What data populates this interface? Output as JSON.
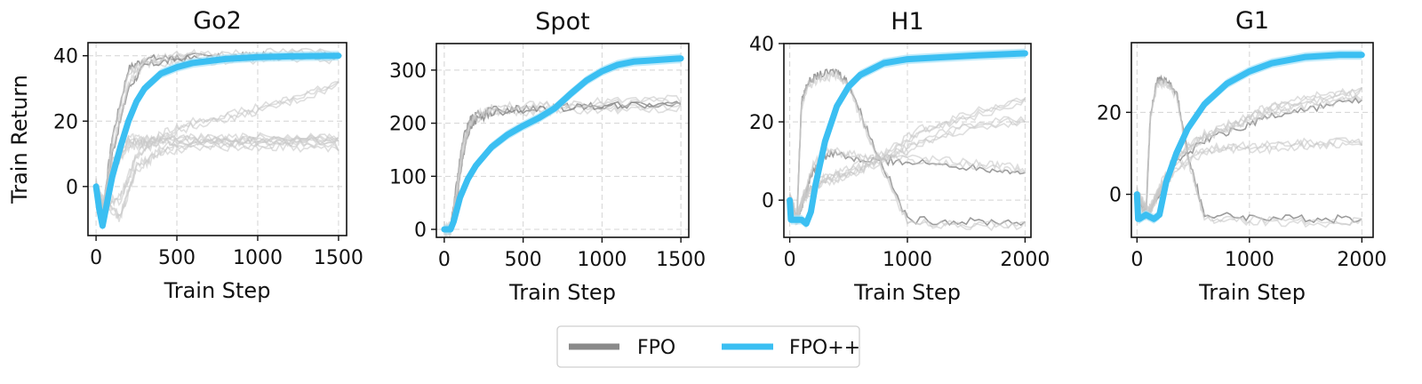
{
  "chart_data": [
    {
      "type": "line",
      "title": "Go2",
      "xlabel": "Train Step",
      "ylabel": "Train Return",
      "xlim": [
        -50,
        1550
      ],
      "ylim": [
        -15,
        44
      ],
      "xticks": [
        0,
        500,
        1000,
        1500
      ],
      "xtick_labels": [
        "0",
        "500",
        "1000",
        "1500"
      ],
      "yticks": [
        0,
        20,
        40
      ],
      "ytick_labels": [
        "0",
        "20",
        "40"
      ],
      "grid": true,
      "series": [
        {
          "name": "FPO++",
          "x": [
            0,
            20,
            40,
            60,
            80,
            100,
            150,
            200,
            250,
            300,
            400,
            500,
            600,
            800,
            1000,
            1200,
            1500
          ],
          "values": [
            0,
            -7,
            -12,
            -7,
            -2,
            3,
            12,
            20,
            26,
            30,
            34.5,
            36.5,
            37.8,
            39,
            39.6,
            39.8,
            40
          ]
        },
        {
          "name": "FPO",
          "runs_approx": [
            {
              "x": [
                0,
                40,
                100,
                200,
                300,
                500,
                800,
                1100,
                1500
              ],
              "values": [
                0,
                -8,
                15,
                36,
                39,
                39.5,
                39.8,
                40,
                40
              ]
            },
            {
              "x": [
                0,
                40,
                100,
                200,
                300,
                500,
                800,
                1100,
                1500
              ],
              "values": [
                0,
                -8,
                10,
                30,
                37,
                39,
                39.5,
                39.8,
                40
              ]
            },
            {
              "x": [
                0,
                40,
                100,
                200,
                300,
                500,
                800,
                1100,
                1500
              ],
              "values": [
                0,
                -8,
                8,
                15,
                15,
                15,
                15,
                15,
                15
              ]
            },
            {
              "x": [
                0,
                40,
                100,
                200,
                300,
                500,
                800,
                1100,
                1500
              ],
              "values": [
                0,
                -8,
                5,
                12,
                12.5,
                13,
                13.5,
                14,
                14
              ]
            },
            {
              "x": [
                0,
                40,
                150,
                250,
                400,
                600,
                900,
                1200,
                1500
              ],
              "values": [
                0,
                -5,
                -3,
                10,
                16,
                20,
                23,
                27,
                32
              ]
            },
            {
              "x": [
                0,
                40,
                150,
                250,
                400,
                600,
                900,
                1200,
                1500
              ],
              "values": [
                0,
                -5,
                -10,
                5,
                10,
                12,
                12,
                12,
                11
              ]
            }
          ]
        }
      ]
    },
    {
      "type": "line",
      "title": "Spot",
      "xlabel": "Train Step",
      "ylabel": "",
      "xlim": [
        -50,
        1550
      ],
      "ylim": [
        -15,
        350
      ],
      "xticks": [
        0,
        500,
        1000,
        1500
      ],
      "xtick_labels": [
        "0",
        "500",
        "1000",
        "1500"
      ],
      "yticks": [
        0,
        100,
        200,
        300
      ],
      "ytick_labels": [
        "0",
        "100",
        "200",
        "300"
      ],
      "grid": true,
      "series": [
        {
          "name": "FPO++",
          "x": [
            0,
            40,
            60,
            100,
            150,
            200,
            300,
            400,
            500,
            600,
            700,
            800,
            900,
            1000,
            1100,
            1200,
            1300,
            1400,
            1500
          ],
          "values": [
            0,
            0,
            15,
            60,
            95,
            120,
            155,
            178,
            195,
            210,
            228,
            255,
            280,
            298,
            310,
            316,
            318,
            320,
            322
          ]
        },
        {
          "name": "FPO",
          "runs_approx": [
            {
              "x": [
                0,
                40,
                80,
                120,
                160,
                200,
                300,
                500,
                800,
                1100,
                1500
              ],
              "values": [
                0,
                0,
                90,
                170,
                205,
                215,
                225,
                228,
                232,
                232,
                235
              ]
            },
            {
              "x": [
                0,
                40,
                80,
                120,
                160,
                200,
                300,
                500,
                800,
                1100,
                1500
              ],
              "values": [
                0,
                0,
                60,
                140,
                190,
                205,
                220,
                226,
                230,
                233,
                238
              ]
            }
          ]
        }
      ]
    },
    {
      "type": "line",
      "title": "H1",
      "xlabel": "Train Step",
      "ylabel": "",
      "xlim": [
        -50,
        2050
      ],
      "ylim": [
        -9.5,
        40
      ],
      "xticks": [
        0,
        1000,
        2000
      ],
      "xtick_labels": [
        "0",
        "1000",
        "2000"
      ],
      "yticks": [
        0,
        20,
        40
      ],
      "ytick_labels": [
        "0",
        "20",
        "40"
      ],
      "grid": true,
      "series": [
        {
          "name": "FPO++",
          "x": [
            0,
            10,
            20,
            60,
            100,
            140,
            180,
            220,
            300,
            400,
            500,
            600,
            800,
            1000,
            1300,
            1600,
            2000
          ],
          "values": [
            0,
            -5,
            -5,
            -5,
            -5,
            -6,
            -3,
            4,
            15,
            24,
            29,
            32,
            35,
            36,
            36.5,
            37,
            37.5
          ]
        },
        {
          "name": "FPO",
          "runs_approx": [
            {
              "x": [
                0,
                60,
                100,
                150,
                250,
                400,
                500,
                700,
                1000,
                1500,
                2000
              ],
              "values": [
                0,
                -5,
                25,
                30,
                32,
                33,
                30,
                15,
                -5,
                -5.5,
                -5.5
              ]
            },
            {
              "x": [
                0,
                60,
                120,
                200,
                350,
                600,
                900,
                1300,
                1700,
                2000
              ],
              "values": [
                0,
                -5,
                0,
                8,
                12,
                10,
                10,
                9,
                8,
                7
              ]
            },
            {
              "x": [
                0,
                60,
                120,
                250,
                500,
                800,
                1100,
                1500,
                2000
              ],
              "values": [
                0,
                -5,
                2,
                5,
                8,
                12,
                18,
                22,
                26
              ]
            },
            {
              "x": [
                0,
                60,
                120,
                250,
                500,
                800,
                1100,
                1500,
                2000
              ],
              "values": [
                0,
                -5,
                0,
                4,
                6,
                10,
                14,
                18,
                20
              ]
            }
          ]
        }
      ]
    },
    {
      "type": "line",
      "title": "G1",
      "xlabel": "Train Step",
      "ylabel": "",
      "xlim": [
        -50,
        2100
      ],
      "ylim": [
        -10.5,
        37
      ],
      "xticks": [
        0,
        1000,
        2000
      ],
      "xtick_labels": [
        "0",
        "1000",
        "2000"
      ],
      "yticks": [
        0,
        20
      ],
      "ytick_labels": [
        "0",
        "20"
      ],
      "grid": true,
      "series": [
        {
          "name": "FPO++",
          "x": [
            0,
            10,
            20,
            80,
            150,
            200,
            260,
            350,
            450,
            600,
            800,
            1000,
            1200,
            1500,
            1800,
            2000
          ],
          "values": [
            0,
            -6,
            -6,
            -5,
            -6,
            -5,
            3,
            10,
            16,
            22,
            27,
            30,
            32,
            33.5,
            34,
            34
          ]
        },
        {
          "name": "FPO",
          "runs_approx": [
            {
              "x": [
                0,
                80,
                120,
                180,
                250,
                350,
                450,
                600,
                1000,
                1500,
                2000
              ],
              "values": [
                0,
                -5,
                20,
                28,
                28,
                25,
                10,
                -5,
                -5.5,
                -6,
                -6
              ]
            },
            {
              "x": [
                0,
                100,
                200,
                350,
                600,
                900,
                1200,
                1600,
                2000
              ],
              "values": [
                0,
                -5,
                0,
                8,
                13,
                16,
                19,
                21,
                23
              ]
            },
            {
              "x": [
                0,
                100,
                200,
                350,
                600,
                900,
                1200,
                1600,
                2000
              ],
              "values": [
                0,
                -5,
                2,
                10,
                15,
                18,
                22,
                24,
                26
              ]
            },
            {
              "x": [
                0,
                100,
                200,
                350,
                600,
                900,
                1200,
                1600,
                2000
              ],
              "values": [
                0,
                -5,
                0,
                6,
                10,
                11,
                11,
                12,
                12
              ]
            }
          ]
        }
      ]
    }
  ],
  "legend": {
    "placement": "bottom-center",
    "entries": [
      {
        "label": "FPO",
        "color": "#8a8a8a"
      },
      {
        "label": "FPO++",
        "color": "#3bbff2"
      }
    ]
  },
  "colors": {
    "fpo": "#8a8a8a",
    "fpo_light": "#c8c8c8",
    "fpopp": "#3bbff2",
    "fpopp_band": "#a9e2f8"
  }
}
